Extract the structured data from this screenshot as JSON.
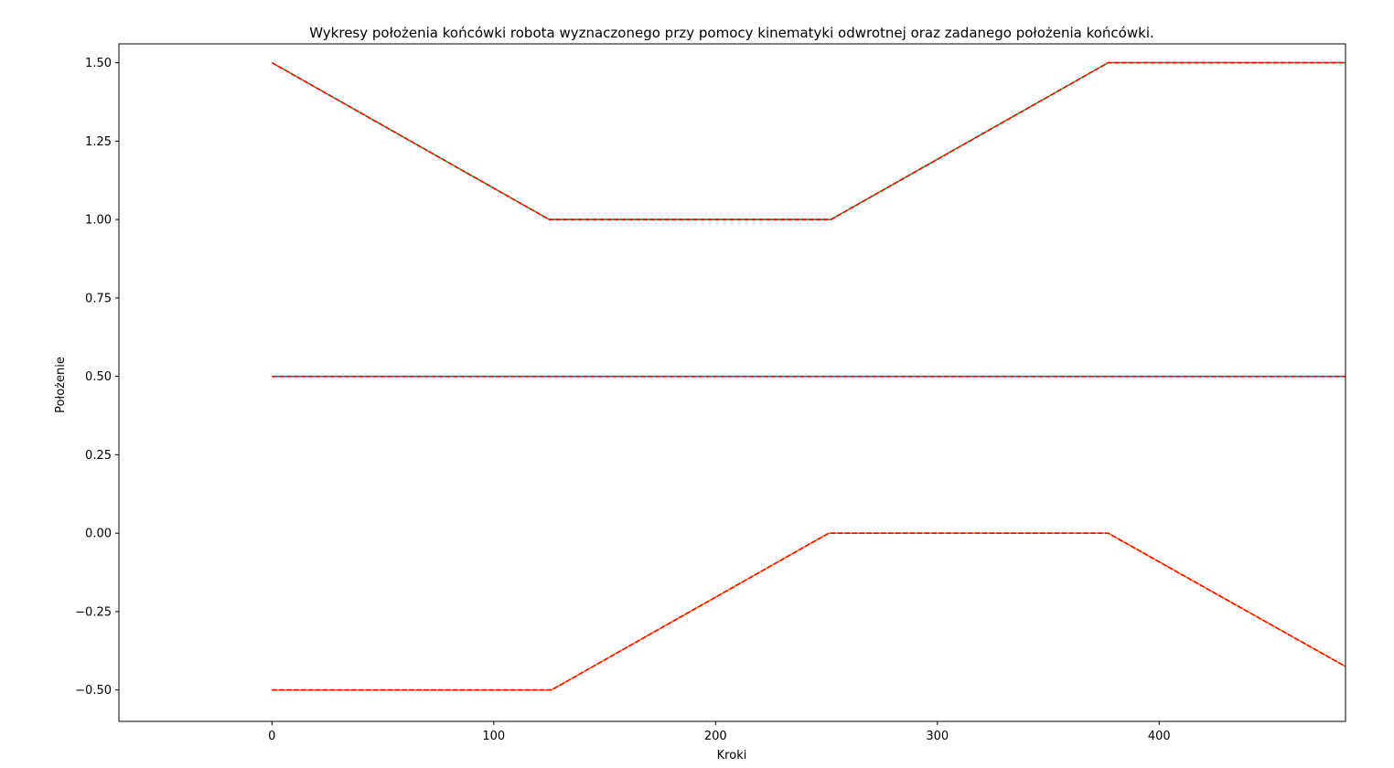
{
  "chart_data": {
    "type": "line",
    "title": "Wykresy położenia końcówki robota wyznaczonego przy pomocy kinematyki odwrotnej oraz zadanego położenia końcówki.",
    "xlabel": "Kroki",
    "ylabel": "Położenie",
    "xlim": [
      -69,
      484
    ],
    "ylim": [
      -0.6,
      1.56
    ],
    "xticks": [
      0,
      100,
      200,
      300,
      400
    ],
    "xtick_labels": [
      "0",
      "100",
      "200",
      "300",
      "400"
    ],
    "yticks": [
      -0.5,
      -0.25,
      0.0,
      0.25,
      0.5,
      0.75,
      1.0,
      1.25,
      1.5
    ],
    "ytick_labels": [
      "−0.50",
      "−0.25",
      "0.00",
      "0.25",
      "0.50",
      "0.75",
      "1.00",
      "1.25",
      "1.50"
    ],
    "grid": false,
    "series": [
      {
        "role": "computed",
        "style": "solid",
        "color": "#2ca02c",
        "x": [
          0,
          125,
          252,
          377,
          484
        ],
        "y": [
          1.5,
          1.0,
          1.0,
          1.5,
          1.5
        ]
      },
      {
        "role": "target",
        "style": "dashed",
        "color": "#ff0000",
        "x": [
          0,
          125,
          252,
          377,
          484
        ],
        "y": [
          1.5,
          1.0,
          1.0,
          1.5,
          1.5
        ]
      },
      {
        "role": "computed",
        "style": "solid",
        "color": "#1f77b4",
        "x": [
          0,
          484
        ],
        "y": [
          0.5,
          0.5
        ]
      },
      {
        "role": "target",
        "style": "dashed",
        "color": "#ff0000",
        "x": [
          0,
          484
        ],
        "y": [
          0.5,
          0.5
        ]
      },
      {
        "role": "computed",
        "style": "solid",
        "color": "#ff7f0e",
        "x": [
          0,
          126,
          251,
          377,
          484
        ],
        "y": [
          -0.5,
          -0.5,
          0.0,
          0.0,
          -0.425
        ]
      },
      {
        "role": "target",
        "style": "dashed",
        "color": "#ff0000",
        "x": [
          0,
          126,
          251,
          377,
          484
        ],
        "y": [
          -0.5,
          -0.5,
          0.0,
          0.0,
          -0.425
        ]
      }
    ]
  }
}
